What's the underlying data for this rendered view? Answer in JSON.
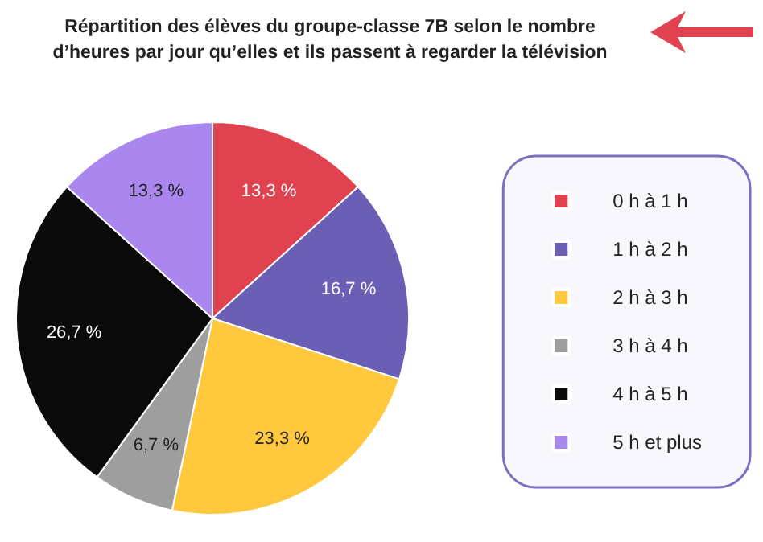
{
  "chart_data": {
    "type": "pie",
    "title": "Répartition des élèves du groupe-classe 7B selon le nombre\nd’heures par jour qu’elles et ils passent à regarder la télévision",
    "categories": [
      "0 h à 1 h",
      "1 h à 2 h",
      "2 h à 3 h",
      "3 h à 4 h",
      "4 h à 5 h",
      "5 h et plus"
    ],
    "values": [
      13.3,
      16.7,
      23.3,
      6.7,
      26.7,
      13.3
    ],
    "value_labels": [
      "13,3 %",
      "16,7 %",
      "23,3 %",
      "6,7 %",
      "26,7 %",
      "13,3 %"
    ],
    "colors": [
      "#e0434f",
      "#6a5fb5",
      "#ffc83d",
      "#9e9e9e",
      "#0a0a0a",
      "#a987ee"
    ],
    "legend": "right"
  }
}
